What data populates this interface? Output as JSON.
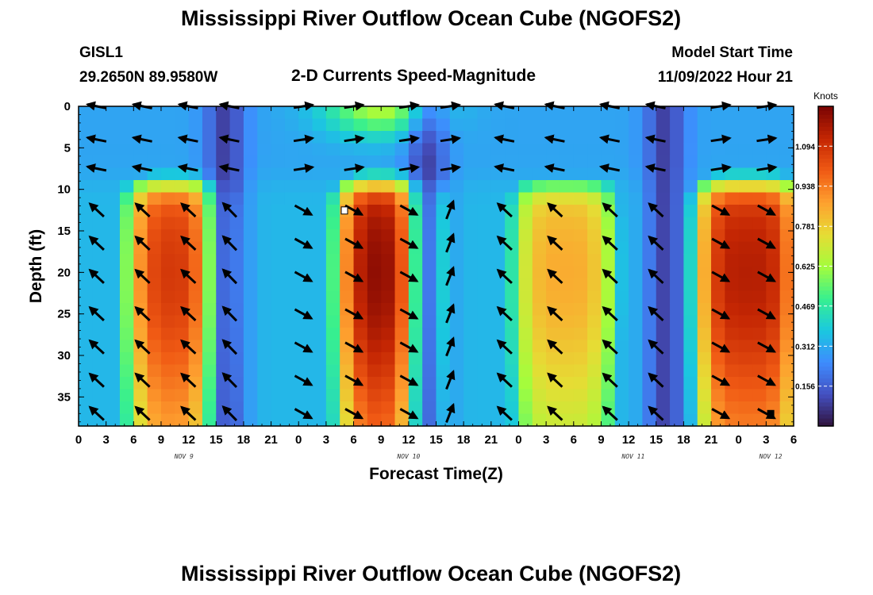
{
  "page": {
    "title": "Mississippi River Outflow Ocean Cube (NGOFS2)",
    "title_bottom": "Mississippi River Outflow Ocean Cube (NGOFS2)",
    "station": "GISL1",
    "coords": "29.2650N  89.9580W",
    "subtitle": "2-D Currents Speed-Magnitude",
    "model_start_label": "Model Start Time",
    "model_start_value": "11/09/2022 Hour 21"
  },
  "chart_data": {
    "type": "heatmap",
    "title": "2-D Currents Speed-Magnitude",
    "xlabel": "Forecast Time(Z)",
    "ylabel": "Depth (ft)",
    "xlim": [
      0,
      78
    ],
    "ylim": [
      38.5,
      0
    ],
    "x_ticks": [
      0,
      3,
      6,
      9,
      12,
      15,
      18,
      21,
      24,
      27,
      30,
      33,
      36,
      39,
      42,
      45,
      48,
      51,
      54,
      57,
      60,
      63,
      66,
      69,
      72,
      75,
      78
    ],
    "x_tick_labels": [
      "0",
      "3",
      "6",
      "9",
      "12",
      "15",
      "18",
      "21",
      "0",
      "3",
      "6",
      "9",
      "12",
      "15",
      "18",
      "21",
      "0",
      "3",
      "6",
      "9",
      "12",
      "15",
      "18",
      "21",
      "0",
      "3",
      "6"
    ],
    "y_ticks": [
      0,
      5,
      10,
      15,
      20,
      25,
      30,
      35
    ],
    "y_tick_labels": [
      "0",
      "5",
      "10",
      "15",
      "20",
      "25",
      "30",
      "35"
    ],
    "date_labels": [
      {
        "text": "NOV 9",
        "x": 11.5
      },
      {
        "text": "NOV 10",
        "x": 36
      },
      {
        "text": "NOV 11",
        "x": 60.5
      },
      {
        "text": "NOV 12",
        "x": 75.5
      }
    ],
    "colorbar": {
      "unit": "Knots",
      "range": [
        0,
        1.25
      ],
      "ticks": [
        0.156,
        0.312,
        0.469,
        0.625,
        0.781,
        0.938,
        1.094
      ],
      "tick_labels": [
        "0.156",
        "0.312",
        "0.469",
        "0.625",
        "0.781",
        "0.938",
        "1.094"
      ]
    },
    "lower_layer_peaks": [
      {
        "time": 11,
        "speed": 1.08
      },
      {
        "time": 34,
        "speed": 1.22
      },
      {
        "time": 53,
        "speed": 0.85
      },
      {
        "time": 73,
        "speed": 1.15
      }
    ],
    "slack_times": [
      16,
      38,
      64
    ],
    "arrow_times": [
      2,
      7,
      12,
      16.5,
      24.5,
      30,
      36,
      40.5,
      46.5,
      52,
      58,
      63,
      70,
      75
    ],
    "arrow_depths": [
      0,
      4,
      7.5,
      12.5,
      16.5,
      20.5,
      25,
      29,
      33,
      37
    ],
    "markers": [
      {
        "time": 29,
        "depth": 12.5,
        "color": "#ffffff"
      },
      {
        "time": 75.5,
        "depth": 37,
        "color": "#000000"
      }
    ]
  }
}
